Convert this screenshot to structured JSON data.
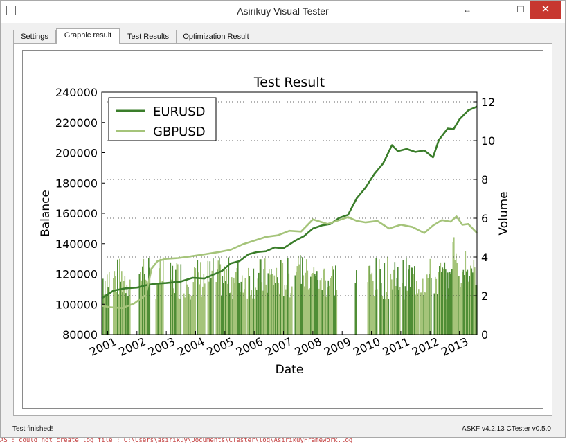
{
  "window": {
    "title": "Asirikuy Visual Tester",
    "resize_glyph": "↔",
    "minimize_glyph": "—",
    "maximize_glyph": "☐",
    "close_glyph": "✕"
  },
  "tabs": [
    {
      "label": "Settings",
      "active": false
    },
    {
      "label": "Graphic result",
      "active": true
    },
    {
      "label": "Test Results",
      "active": false
    },
    {
      "label": "Optimization Result",
      "active": false
    }
  ],
  "status": {
    "left": "Test finished!",
    "right": "ASKF v4.2.13 CTester v0.5.0"
  },
  "console_text": "AS : could not create log file : C:\\Users\\asirikuy\\Documents\\CTester\\log\\AsirikuyFramework.log",
  "colors": {
    "eurusd": "#3a7d2a",
    "gbpusd": "#a5c47a",
    "close": "#c7372f"
  },
  "chart_data": {
    "type": "line",
    "title": "Test Result",
    "xlabel": "Date",
    "ylabel": "Balance",
    "y2label": "Volume",
    "x_ticks": [
      "2001",
      "2002",
      "2003",
      "2004",
      "2005",
      "2006",
      "2007",
      "2008",
      "2009",
      "2010",
      "2011",
      "2012",
      "2013"
    ],
    "y_ticks": [
      80000,
      100000,
      120000,
      140000,
      160000,
      180000,
      200000,
      220000,
      240000
    ],
    "y2_ticks": [
      0,
      2,
      4,
      6,
      8,
      10,
      12
    ],
    "ylim": [
      80000,
      240000
    ],
    "y2lim": [
      0,
      12.5
    ],
    "xlim": [
      2000.8,
      2013.6
    ],
    "grid": "dotted horizontal on volume axis",
    "legend_position": "top-left",
    "series": [
      {
        "name": "EURUSD",
        "color": "#3a7d2a",
        "x": [
          2000.8,
          2001.2,
          2001.6,
          2002.0,
          2002.3,
          2002.6,
          2003.0,
          2003.5,
          2003.9,
          2004.3,
          2004.6,
          2004.9,
          2005.2,
          2005.5,
          2005.8,
          2006.1,
          2006.4,
          2006.7,
          2007.0,
          2007.4,
          2007.7,
          2008.0,
          2008.3,
          2008.6,
          2008.9,
          2009.2,
          2009.5,
          2009.8,
          2010.1,
          2010.4,
          2010.7,
          2010.9,
          2011.2,
          2011.5,
          2011.8,
          2012.1,
          2012.3,
          2012.6,
          2012.8,
          2013.0,
          2013.3,
          2013.6
        ],
        "values": [
          104000,
          109000,
          110500,
          111000,
          112500,
          113500,
          114000,
          115000,
          117500,
          117000,
          119500,
          122000,
          127000,
          128500,
          133000,
          134500,
          135000,
          137500,
          137000,
          142000,
          145000,
          150000,
          152000,
          153000,
          157000,
          159000,
          170000,
          177000,
          186000,
          193000,
          205000,
          201000,
          202500,
          200500,
          201500,
          197000,
          208500,
          216000,
          215500,
          222000,
          228000,
          230500
        ]
      },
      {
        "name": "GBPUSD",
        "color": "#a5c47a",
        "x": [
          2000.8,
          2001.1,
          2001.5,
          2001.9,
          2002.3,
          2002.5,
          2002.7,
          2003.0,
          2003.4,
          2003.8,
          2004.3,
          2004.8,
          2005.2,
          2005.6,
          2006.0,
          2006.4,
          2006.8,
          2007.2,
          2007.6,
          2008.0,
          2008.5,
          2008.9,
          2009.2,
          2009.5,
          2009.8,
          2010.2,
          2010.6,
          2011.0,
          2011.4,
          2011.8,
          2012.1,
          2012.4,
          2012.7,
          2012.9,
          2013.1,
          2013.3,
          2013.6
        ],
        "values": [
          99000,
          98000,
          97500,
          100500,
          106000,
          123500,
          128500,
          130000,
          130500,
          131500,
          133000,
          134500,
          136000,
          139500,
          142000,
          144500,
          145500,
          148500,
          148000,
          156000,
          153000,
          155500,
          157500,
          155000,
          154000,
          155000,
          150000,
          152500,
          151000,
          147000,
          152000,
          155500,
          154500,
          158000,
          152500,
          153000,
          147000
        ]
      }
    ],
    "volume_series": {
      "color": "#a5c47a",
      "x_range": [
        2000.8,
        2013.6
      ],
      "gaps": [
        [
          2001.05,
          2001.15
        ],
        [
          2001.75,
          2002.05
        ],
        [
          2002.42,
          2002.6
        ],
        [
          2002.88,
          2003.12
        ],
        [
          2003.5,
          2003.58
        ],
        [
          2004.0,
          2004.02
        ],
        [
          2004.32,
          2004.4
        ],
        [
          2004.6,
          2004.65
        ],
        [
          2005.68,
          2005.74
        ],
        [
          2007.3,
          2007.35
        ],
        [
          2008.8,
          2009.4
        ],
        [
          2009.5,
          2009.85
        ],
        [
          2010.18,
          2010.22
        ],
        [
          2010.58,
          2010.62
        ],
        [
          2010.98,
          2011.02
        ],
        [
          2011.6,
          2011.65
        ],
        [
          2012.05,
          2012.1
        ]
      ],
      "typical_range": [
        1.8,
        4.0
      ],
      "peaks": [
        [
          2002.2,
          4.2
        ],
        [
          2007.5,
          4.8
        ],
        [
          2008.0,
          4.5
        ],
        [
          2010.8,
          3.5
        ],
        [
          2012.8,
          5.6
        ],
        [
          2013.2,
          4.7
        ]
      ]
    }
  }
}
